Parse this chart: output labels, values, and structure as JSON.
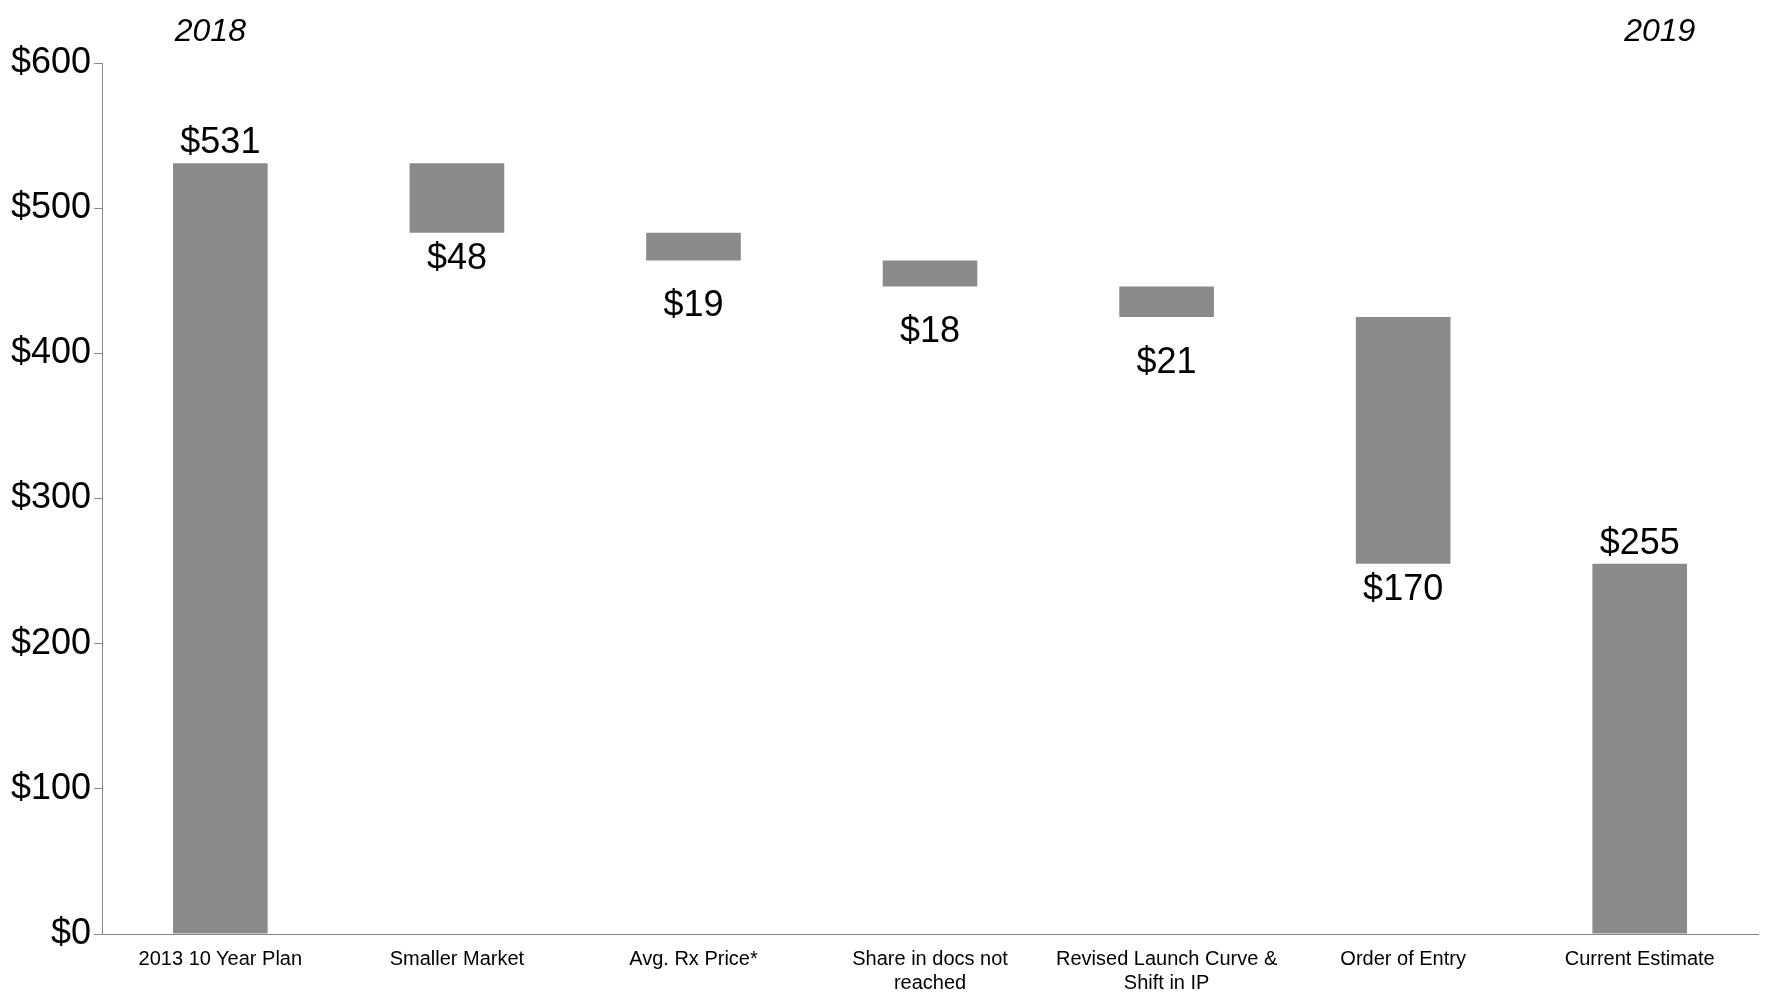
{
  "chart_data": {
    "type": "bar",
    "categories": [
      "2013 10 Year Plan",
      "Smaller Market",
      "Avg. Rx Price*",
      "Share in docs not reached",
      "Revised Launch Curve & Shift in IP",
      "Order of Entry",
      "Current Estimate"
    ],
    "values": [
      531,
      48,
      19,
      18,
      21,
      170,
      255
    ],
    "base": [
      0,
      483,
      464,
      446,
      425,
      255,
      0
    ],
    "value_labels": [
      "$531",
      "$48",
      "$19",
      "$18",
      "$21",
      "$170",
      "$255"
    ],
    "color": "#8a8a8a",
    "ylim": [
      0,
      600
    ],
    "yticks": [
      {
        "value": 0,
        "label": "$0"
      },
      {
        "value": 100,
        "label": "$100"
      },
      {
        "value": 200,
        "label": "$200"
      },
      {
        "value": 300,
        "label": "$300"
      },
      {
        "value": 400,
        "label": "$400"
      },
      {
        "value": 500,
        "label": "$500"
      },
      {
        "value": 600,
        "label": "$600"
      }
    ],
    "annotations": [
      "2018",
      "2019"
    ],
    "grid": false,
    "legend": false
  }
}
